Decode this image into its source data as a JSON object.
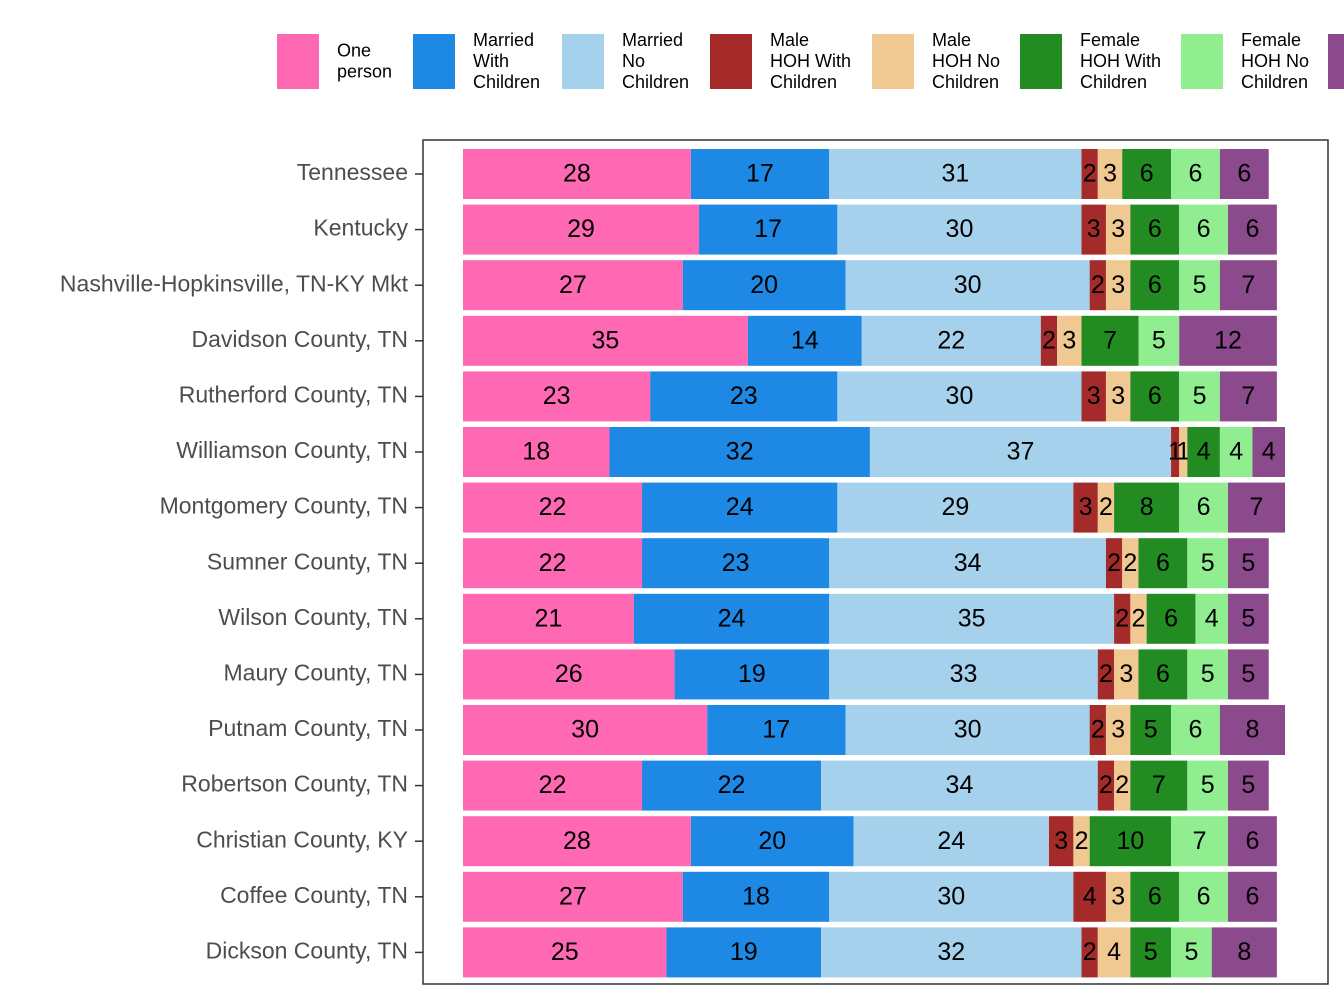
{
  "chart_data": {
    "type": "stacked-bar-horizontal",
    "categories": [
      "Tennessee",
      "Kentucky",
      "Nashville-Hopkinsville, TN-KY Mkt",
      "Davidson County, TN",
      "Rutherford County, TN",
      "Williamson County, TN",
      "Montgomery County, TN",
      "Sumner County, TN",
      "Wilson County, TN",
      "Maury County, TN",
      "Putnam County, TN",
      "Robertson County, TN",
      "Christian County, KY",
      "Coffee County, TN",
      "Dickson County, TN"
    ],
    "series": [
      {
        "name": "One\nperson",
        "color": "#ff69b4",
        "values": [
          28,
          29,
          27,
          35,
          23,
          18,
          22,
          22,
          21,
          26,
          30,
          22,
          28,
          27,
          25
        ]
      },
      {
        "name": "Married\nWith\nChildren",
        "color": "#1e88e5",
        "values": [
          17,
          17,
          20,
          14,
          23,
          32,
          24,
          23,
          24,
          19,
          17,
          22,
          20,
          18,
          19
        ]
      },
      {
        "name": "Married\nNo\nChildren",
        "color": "#a6d1ec",
        "values": [
          31,
          30,
          30,
          22,
          30,
          37,
          29,
          34,
          35,
          33,
          30,
          34,
          24,
          30,
          32
        ]
      },
      {
        "name": "Male\nHOH With\nChildren",
        "color": "#a52a2a",
        "values": [
          2,
          3,
          2,
          2,
          3,
          1,
          3,
          2,
          2,
          2,
          2,
          2,
          3,
          4,
          2
        ]
      },
      {
        "name": "Male\nHOH No\nChildren",
        "color": "#efc892",
        "values": [
          3,
          3,
          3,
          3,
          3,
          1,
          2,
          2,
          2,
          3,
          3,
          2,
          2,
          3,
          4
        ]
      },
      {
        "name": "Female\nHOH With\nChildren",
        "color": "#228b22",
        "values": [
          6,
          6,
          6,
          7,
          6,
          4,
          8,
          6,
          6,
          6,
          5,
          7,
          10,
          6,
          5
        ]
      },
      {
        "name": "Female\nHOH No\nChildren",
        "color": "#90ee90",
        "values": [
          6,
          6,
          5,
          5,
          5,
          4,
          6,
          5,
          4,
          5,
          6,
          5,
          7,
          6,
          5
        ]
      },
      {
        "color": "#8b4a8b",
        "values": [
          6,
          6,
          7,
          12,
          7,
          4,
          7,
          5,
          5,
          5,
          8,
          5,
          6,
          6,
          8
        ]
      }
    ],
    "xlim": [
      0,
      101
    ]
  }
}
